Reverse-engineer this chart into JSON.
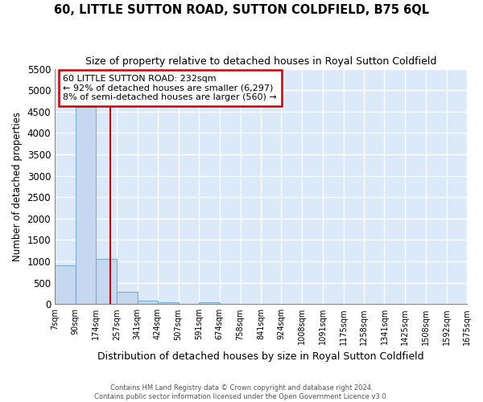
{
  "title": "60, LITTLE SUTTON ROAD, SUTTON COLDFIELD, B75 6QL",
  "subtitle": "Size of property relative to detached houses in Royal Sutton Coldfield",
  "xlabel": "Distribution of detached houses by size in Royal Sutton Coldfield",
  "ylabel": "Number of detached properties",
  "bins": [
    "7sqm",
    "90sqm",
    "174sqm",
    "257sqm",
    "341sqm",
    "424sqm",
    "507sqm",
    "591sqm",
    "674sqm",
    "758sqm",
    "841sqm",
    "924sqm",
    "1008sqm",
    "1091sqm",
    "1175sqm",
    "1258sqm",
    "1341sqm",
    "1425sqm",
    "1508sqm",
    "1592sqm",
    "1675sqm"
  ],
  "bar_values": [
    900,
    4600,
    1060,
    290,
    80,
    50,
    0,
    40,
    0,
    0,
    0,
    0,
    0,
    0,
    0,
    0,
    0,
    0,
    0,
    0
  ],
  "bar_color": "#c5d8f0",
  "bar_edge_color": "#7aadd4",
  "ylim": [
    0,
    5500
  ],
  "yticks": [
    0,
    500,
    1000,
    1500,
    2000,
    2500,
    3000,
    3500,
    4000,
    4500,
    5000,
    5500
  ],
  "property_size": 232,
  "bin_edges": [
    7,
    90,
    174,
    257,
    341,
    424,
    507,
    591,
    674,
    758,
    841,
    924,
    1008,
    1091,
    1175,
    1258,
    1341,
    1425,
    1508,
    1592,
    1675
  ],
  "annotation_text": "60 LITTLE SUTTON ROAD: 232sqm\n← 92% of detached houses are smaller (6,297)\n8% of semi-detached houses are larger (560) →",
  "red_line_color": "#cc0000",
  "annotation_box_color": "#cc0000",
  "footer_line1": "Contains HM Land Registry data © Crown copyright and database right 2024.",
  "footer_line2": "Contains public sector information licensed under the Open Government Licence v3.0.",
  "background_color": "#dce9f8",
  "fig_background": "#ffffff",
  "grid_color": "#ffffff"
}
